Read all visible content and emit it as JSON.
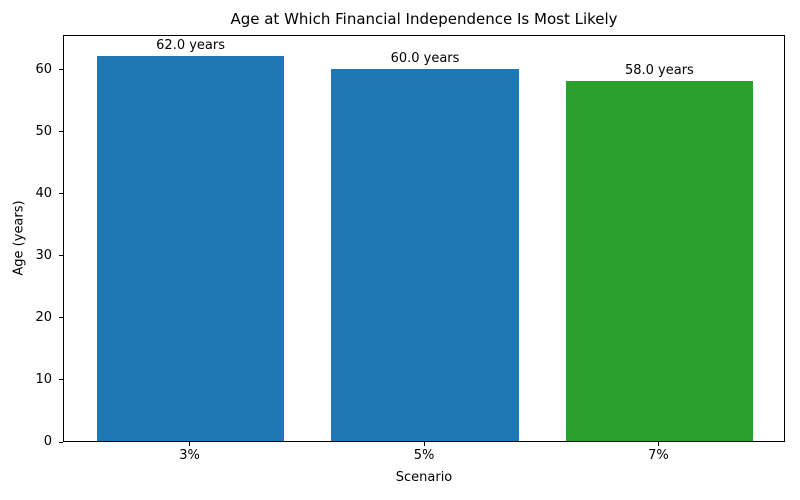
{
  "chart_data": {
    "type": "bar",
    "title": "Age at Which Financial Independence Is Most Likely",
    "xlabel": "Scenario",
    "ylabel": "Age (years)",
    "categories": [
      "3%",
      "5%",
      "7%"
    ],
    "values": [
      62.0,
      60.0,
      58.0
    ],
    "value_labels": [
      "62.0 years",
      "60.0 years",
      "58.0 years"
    ],
    "bar_colors": [
      "#1f77b4",
      "#1f77b4",
      "#2ca02c"
    ],
    "ylim": [
      0,
      65.6
    ],
    "yticks": [
      0,
      10,
      20,
      30,
      40,
      50,
      60
    ],
    "bar_width_fraction": 0.8,
    "grid": false,
    "legend": null,
    "background_color": "#ffffff",
    "spine_color": "#000000",
    "text_color": "#000000"
  }
}
